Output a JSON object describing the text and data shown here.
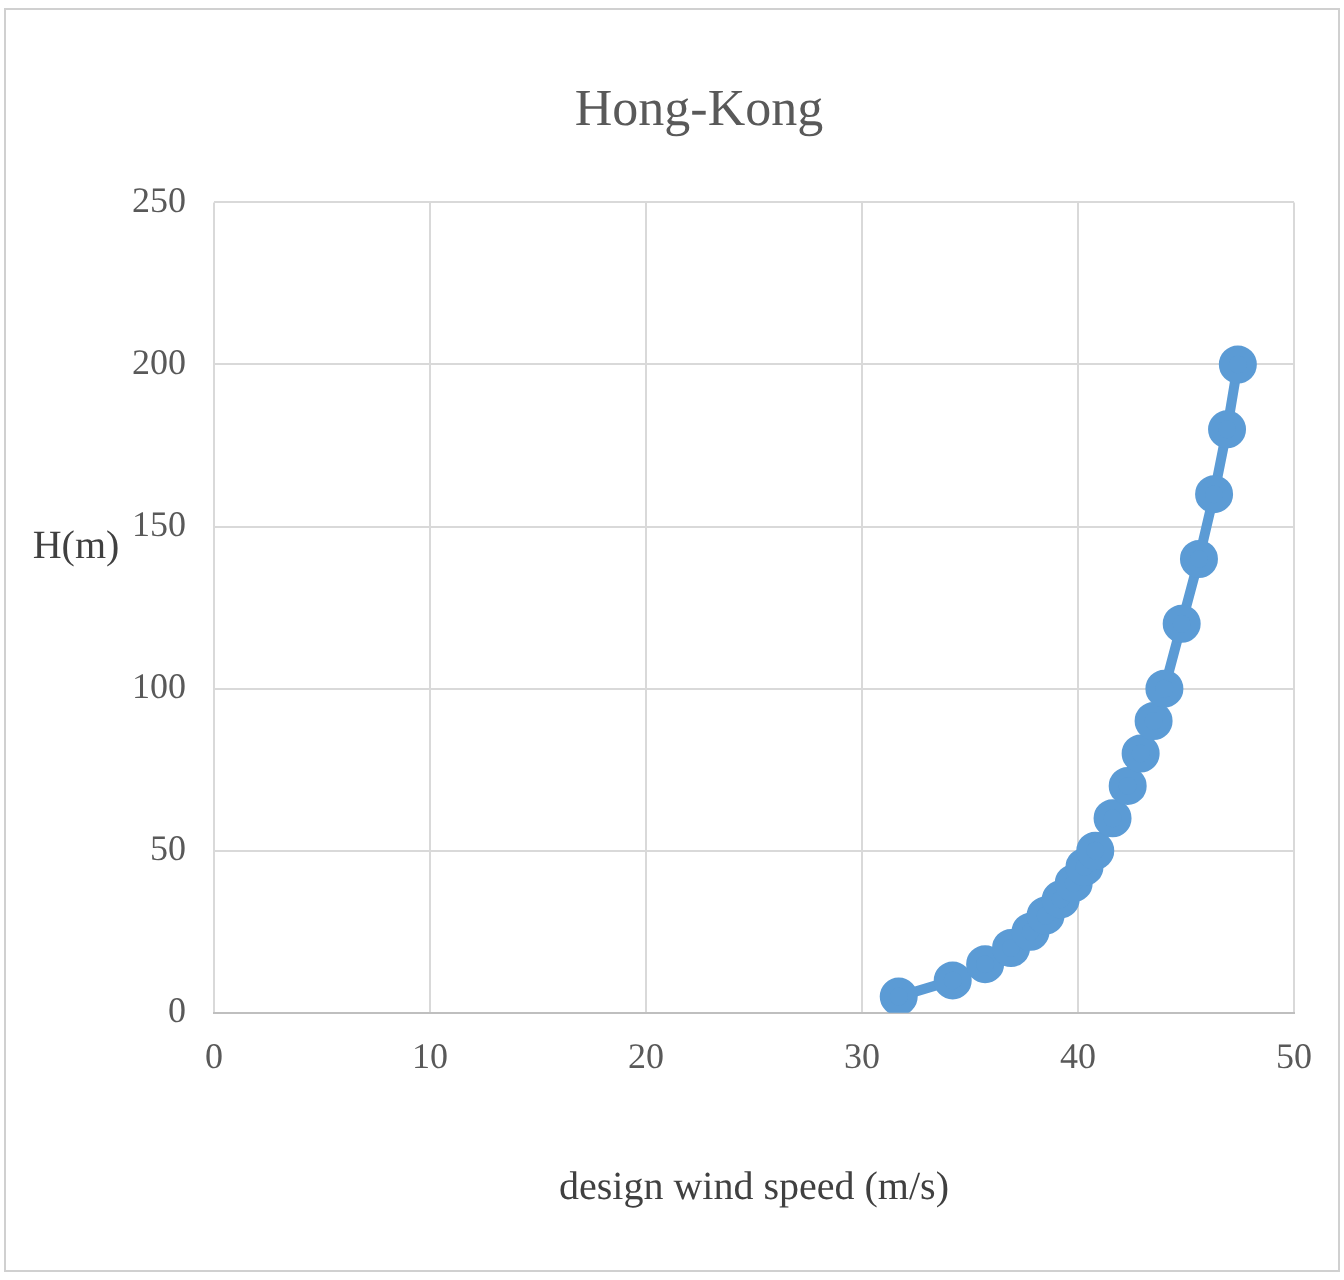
{
  "chart_data": {
    "type": "line",
    "title": "Hong-Kong",
    "xlabel": "design wind speed (m/s)",
    "ylabel": "H(m)",
    "xlim": [
      0,
      50
    ],
    "xticks": [
      0,
      10,
      20,
      30,
      40,
      50
    ],
    "ylim": [
      0,
      250
    ],
    "yticks": [
      0,
      50,
      100,
      150,
      200,
      250
    ],
    "grid": true,
    "legend": false,
    "marker": "circle",
    "line_style": "solid",
    "series": [
      {
        "color": "#5b9bd5",
        "x": [
          31.7,
          34.2,
          35.7,
          36.9,
          37.8,
          38.5,
          39.2,
          39.8,
          40.3,
          40.8,
          41.6,
          42.3,
          42.9,
          43.5,
          44.0,
          44.8,
          45.6,
          46.3,
          46.9,
          47.4
        ],
        "values": [
          5,
          10,
          15,
          20,
          25,
          30,
          35,
          40,
          45,
          50,
          60,
          70,
          80,
          90,
          100,
          120,
          140,
          160,
          180,
          200
        ]
      }
    ]
  }
}
